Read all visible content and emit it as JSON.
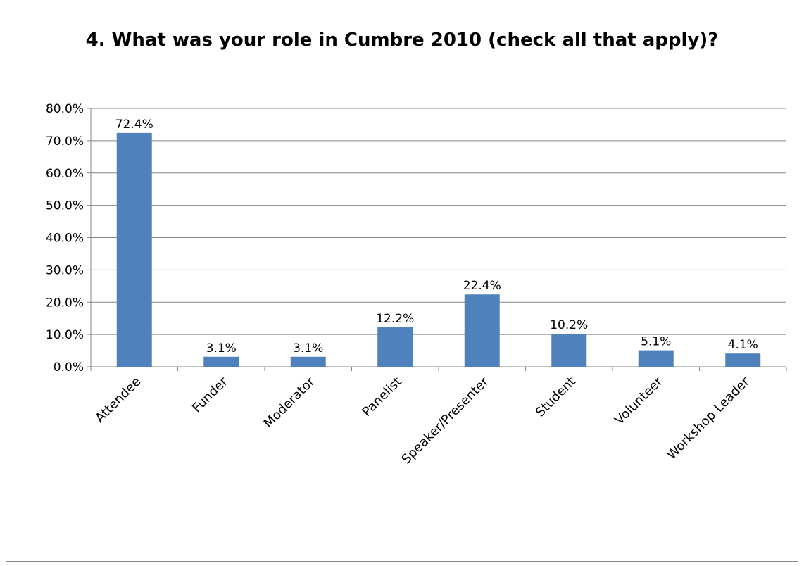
{
  "chart_data": {
    "type": "bar",
    "title": "4. What was your role in Cumbre 2010 (check all that apply)?",
    "xlabel": "",
    "ylabel": "",
    "categories": [
      "Attendee",
      "Funder",
      "Moderator",
      "Panelist",
      "Speaker/Presenter",
      "Student",
      "Volunteer",
      "Workshop Leader"
    ],
    "values": [
      72.4,
      3.1,
      3.1,
      12.2,
      22.4,
      10.2,
      5.1,
      4.1
    ],
    "value_labels": [
      "72.4%",
      "3.1%",
      "3.1%",
      "12.2%",
      "22.4%",
      "10.2%",
      "5.1%",
      "4.1%"
    ],
    "ylim": [
      0,
      80
    ],
    "yticks": [
      0,
      10,
      20,
      30,
      40,
      50,
      60,
      70,
      80
    ],
    "ytick_labels": [
      "0.0%",
      "10.0%",
      "20.0%",
      "30.0%",
      "40.0%",
      "50.0%",
      "60.0%",
      "70.0%",
      "80.0%"
    ],
    "grid": true,
    "legend": "none",
    "colors": {
      "bar": "#4f81bd",
      "grid": "#868686",
      "axis": "#868686"
    }
  }
}
